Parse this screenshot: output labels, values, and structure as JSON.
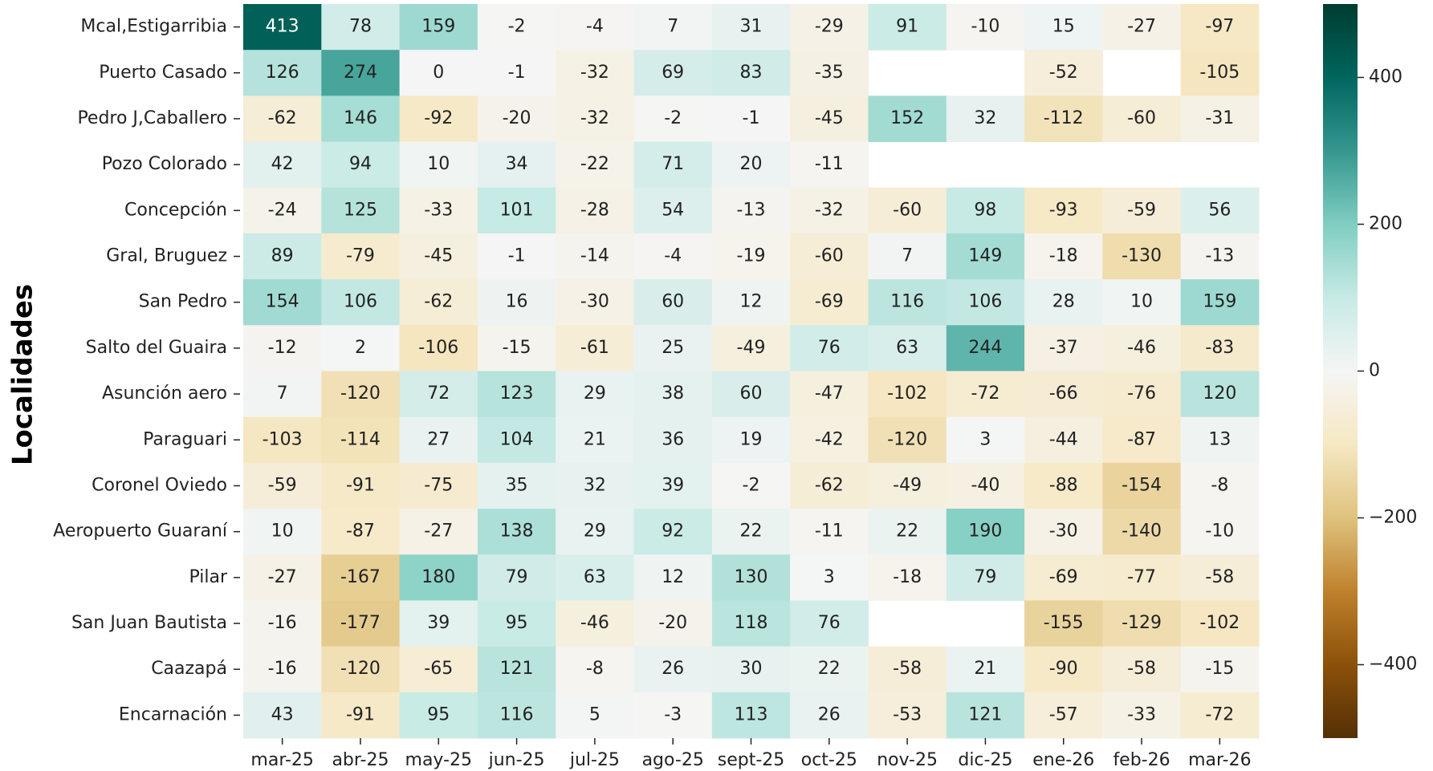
{
  "chart_data": {
    "type": "heatmap",
    "ylabel": "Localidades",
    "x": [
      "mar-25",
      "abr-25",
      "may-25",
      "jun-25",
      "jul-25",
      "ago-25",
      "sept-25",
      "oct-25",
      "nov-25",
      "dic-25",
      "ene-26",
      "feb-26",
      "mar-26"
    ],
    "categories": [
      "Mcal,Estigarribia",
      "Puerto Casado",
      "Pedro J,Caballero",
      "Pozo Colorado",
      "Concepción",
      "Gral, Bruguez",
      "San Pedro",
      "Salto del Guaira",
      "Asunción aero",
      "Paraguari",
      "Coronel Oviedo",
      "Aeropuerto Guaraní",
      "Pilar",
      "San Juan Bautista",
      "Caazapá",
      "Encarnación"
    ],
    "values": [
      [
        413,
        78,
        159,
        -2,
        -4,
        7,
        31,
        -29,
        91,
        -10,
        15,
        -27,
        -97
      ],
      [
        126,
        274,
        0,
        -1,
        -32,
        69,
        83,
        -35,
        null,
        null,
        -52,
        null,
        -105
      ],
      [
        -62,
        146,
        -92,
        -20,
        -32,
        -2,
        -1,
        -45,
        152,
        32,
        -112,
        -60,
        -31
      ],
      [
        42,
        94,
        10,
        34,
        -22,
        71,
        20,
        -11,
        null,
        null,
        null,
        null,
        null
      ],
      [
        -24,
        125,
        -33,
        101,
        -28,
        54,
        -13,
        -32,
        -60,
        98,
        -93,
        -59,
        56
      ],
      [
        89,
        -79,
        -45,
        -1,
        -14,
        -4,
        -19,
        -60,
        7,
        149,
        -18,
        -130,
        -13
      ],
      [
        154,
        106,
        -62,
        16,
        -30,
        60,
        12,
        -69,
        116,
        106,
        28,
        10,
        159
      ],
      [
        -12,
        2,
        -106,
        -15,
        -61,
        25,
        -49,
        76,
        63,
        244,
        -37,
        -46,
        -83
      ],
      [
        7,
        -120,
        72,
        123,
        29,
        38,
        60,
        -47,
        -102,
        -72,
        -66,
        -76,
        120
      ],
      [
        -103,
        -114,
        27,
        104,
        21,
        36,
        19,
        -42,
        -120,
        3,
        -44,
        -87,
        13
      ],
      [
        -59,
        -91,
        -75,
        35,
        32,
        39,
        -2,
        -62,
        -49,
        -40,
        -88,
        -154,
        -8
      ],
      [
        10,
        -87,
        -27,
        138,
        29,
        92,
        22,
        -11,
        22,
        190,
        -30,
        -140,
        -10
      ],
      [
        -27,
        -167,
        180,
        79,
        63,
        12,
        130,
        3,
        -18,
        79,
        -69,
        -77,
        -58
      ],
      [
        -16,
        -177,
        39,
        95,
        -46,
        -20,
        118,
        76,
        null,
        null,
        -155,
        -129,
        -102
      ],
      [
        -16,
        -120,
        -65,
        121,
        -8,
        26,
        30,
        22,
        -58,
        21,
        -90,
        -58,
        -15
      ],
      [
        43,
        -91,
        95,
        116,
        5,
        -3,
        113,
        26,
        -53,
        121,
        -57,
        -33,
        -72
      ]
    ],
    "cmap": "BrBG",
    "clim": [
      -500,
      500
    ],
    "cticks": [
      {
        "value": -400,
        "label": "−400"
      },
      {
        "value": -200,
        "label": "−200"
      },
      0,
      200,
      400
    ]
  }
}
